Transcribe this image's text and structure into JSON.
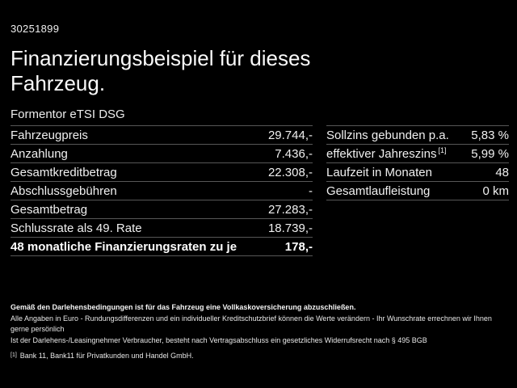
{
  "page": {
    "background": "#000000",
    "text_color": "#f0f0f0",
    "divider_color": "#575757"
  },
  "header": {
    "vehicle_id": "30251899",
    "title": "Finanzierungsbeispiel für dieses Fahrzeug.",
    "model": "Formentor eTSI DSG"
  },
  "finance_table": {
    "rows": [
      {
        "label": "Fahrzeugpreis",
        "value": "29.744,-"
      },
      {
        "label": "Anzahlung",
        "value": "7.436,-"
      },
      {
        "label": "Gesamtkreditbetrag",
        "value": "22.308,-"
      },
      {
        "label": "Abschlussgebühren",
        "value": "-"
      },
      {
        "label": "Gesamtbetrag",
        "value": "27.283,-"
      },
      {
        "label": "Schlussrate als 49. Rate",
        "value": "18.739,-"
      },
      {
        "label": "48 monatliche Finanzierungsraten zu je",
        "value": "178,-"
      }
    ]
  },
  "conditions_table": {
    "rows": [
      {
        "label": "Sollzins gebunden p.a.",
        "value": "5,83 %"
      },
      {
        "label": "effektiver Jahreszins",
        "footnote_marker": "[1]",
        "value": "5,99 %"
      },
      {
        "label": "Laufzeit in Monaten",
        "value": "48"
      },
      {
        "label": "Gesamtlaufleistung",
        "value": "0 km"
      }
    ]
  },
  "footer": {
    "line1": "Gemäß den Darlehensbedingungen ist für das Fahrzeug eine Vollkaskoversicherung abzuschließen.",
    "line2": "Alle Angaben in Euro - Rundungsdifferenzen und ein individueller Kreditschutzbrief können die Werte verändern - Ihr Wunschrate errechnen wir Ihnen gerne persönlich",
    "line3": "Ist der Darlehens-/Leasingnehmer Verbraucher, besteht nach Vertragsabschluss ein gesetzliches Widerrufsrecht nach § 495 BGB",
    "footnote_marker": "[1]",
    "footnote": "Bank 11, Bank11 für Privatkunden und Handel GmbH."
  }
}
